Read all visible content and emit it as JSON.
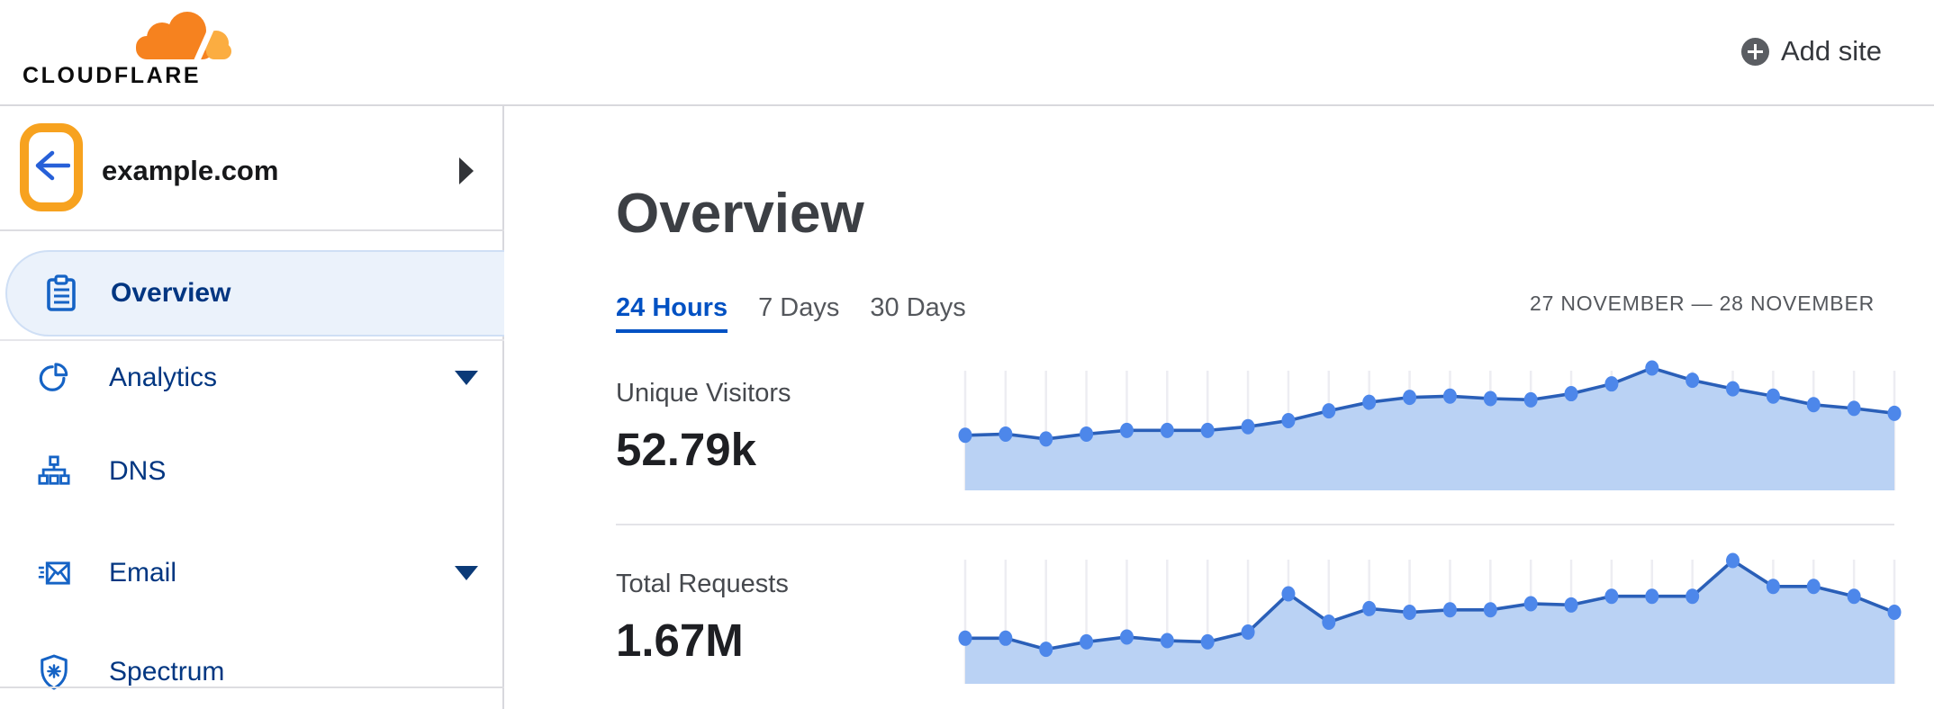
{
  "header": {
    "brand": "CLOUDFLARE",
    "add_site_label": "Add site"
  },
  "sidebar": {
    "site": {
      "name": "example.com"
    },
    "items": [
      {
        "label": "Overview",
        "icon": "clipboard-icon",
        "active": true,
        "has_submenu": false
      },
      {
        "label": "Analytics",
        "icon": "pie-chart-icon",
        "active": false,
        "has_submenu": true
      },
      {
        "label": "DNS",
        "icon": "sitemap-icon",
        "active": false,
        "has_submenu": false
      },
      {
        "label": "Email",
        "icon": "email-icon",
        "active": false,
        "has_submenu": true
      },
      {
        "label": "Spectrum",
        "icon": "shield-icon",
        "active": false,
        "has_submenu": false
      }
    ]
  },
  "main": {
    "title": "Overview",
    "time_tabs": [
      {
        "label": "24 Hours",
        "active": true
      },
      {
        "label": "7 Days",
        "active": false
      },
      {
        "label": "30 Days",
        "active": false
      }
    ],
    "date_range": "27 NOVEMBER — 28 NOVEMBER"
  },
  "chart_data": [
    {
      "type": "area",
      "title": "Unique Visitors",
      "total_label": "52.79k",
      "x_description": "24 hourly points spanning 27 November – 28 November (no tick labels shown)",
      "y_axis": "unlabeled; values normalized 0–1 of chart height",
      "values_relative": [
        0.45,
        0.46,
        0.42,
        0.46,
        0.49,
        0.49,
        0.49,
        0.52,
        0.57,
        0.65,
        0.72,
        0.76,
        0.77,
        0.75,
        0.74,
        0.79,
        0.87,
        1.0,
        0.9,
        0.83,
        0.77,
        0.7,
        0.67,
        0.63
      ],
      "grid": "vertical gridline at every point",
      "legend": "none"
    },
    {
      "type": "area",
      "title": "Total Requests",
      "total_label": "1.67M",
      "x_description": "24 hourly points spanning 27 November – 28 November (no tick labels shown)",
      "y_axis": "unlabeled; values normalized 0–1 of chart height",
      "values_relative": [
        0.37,
        0.37,
        0.28,
        0.34,
        0.38,
        0.35,
        0.34,
        0.42,
        0.73,
        0.5,
        0.61,
        0.58,
        0.6,
        0.6,
        0.65,
        0.64,
        0.71,
        0.71,
        0.71,
        1.0,
        0.79,
        0.79,
        0.71,
        0.58
      ],
      "grid": "vertical gridline at every point",
      "legend": "none"
    }
  ],
  "colors": {
    "brand_orange_dark": "#f6821f",
    "brand_orange_light": "#fbad41",
    "annotation_orange": "#f7a21f",
    "link_blue": "#0051c3",
    "nav_text_blue": "#003681",
    "icon_blue": "#1563c5",
    "chart_line": "#2a5fb8",
    "chart_dot": "#4d87ea",
    "chart_fill": "#bad2f4",
    "chart_grid": "#ededf2"
  }
}
